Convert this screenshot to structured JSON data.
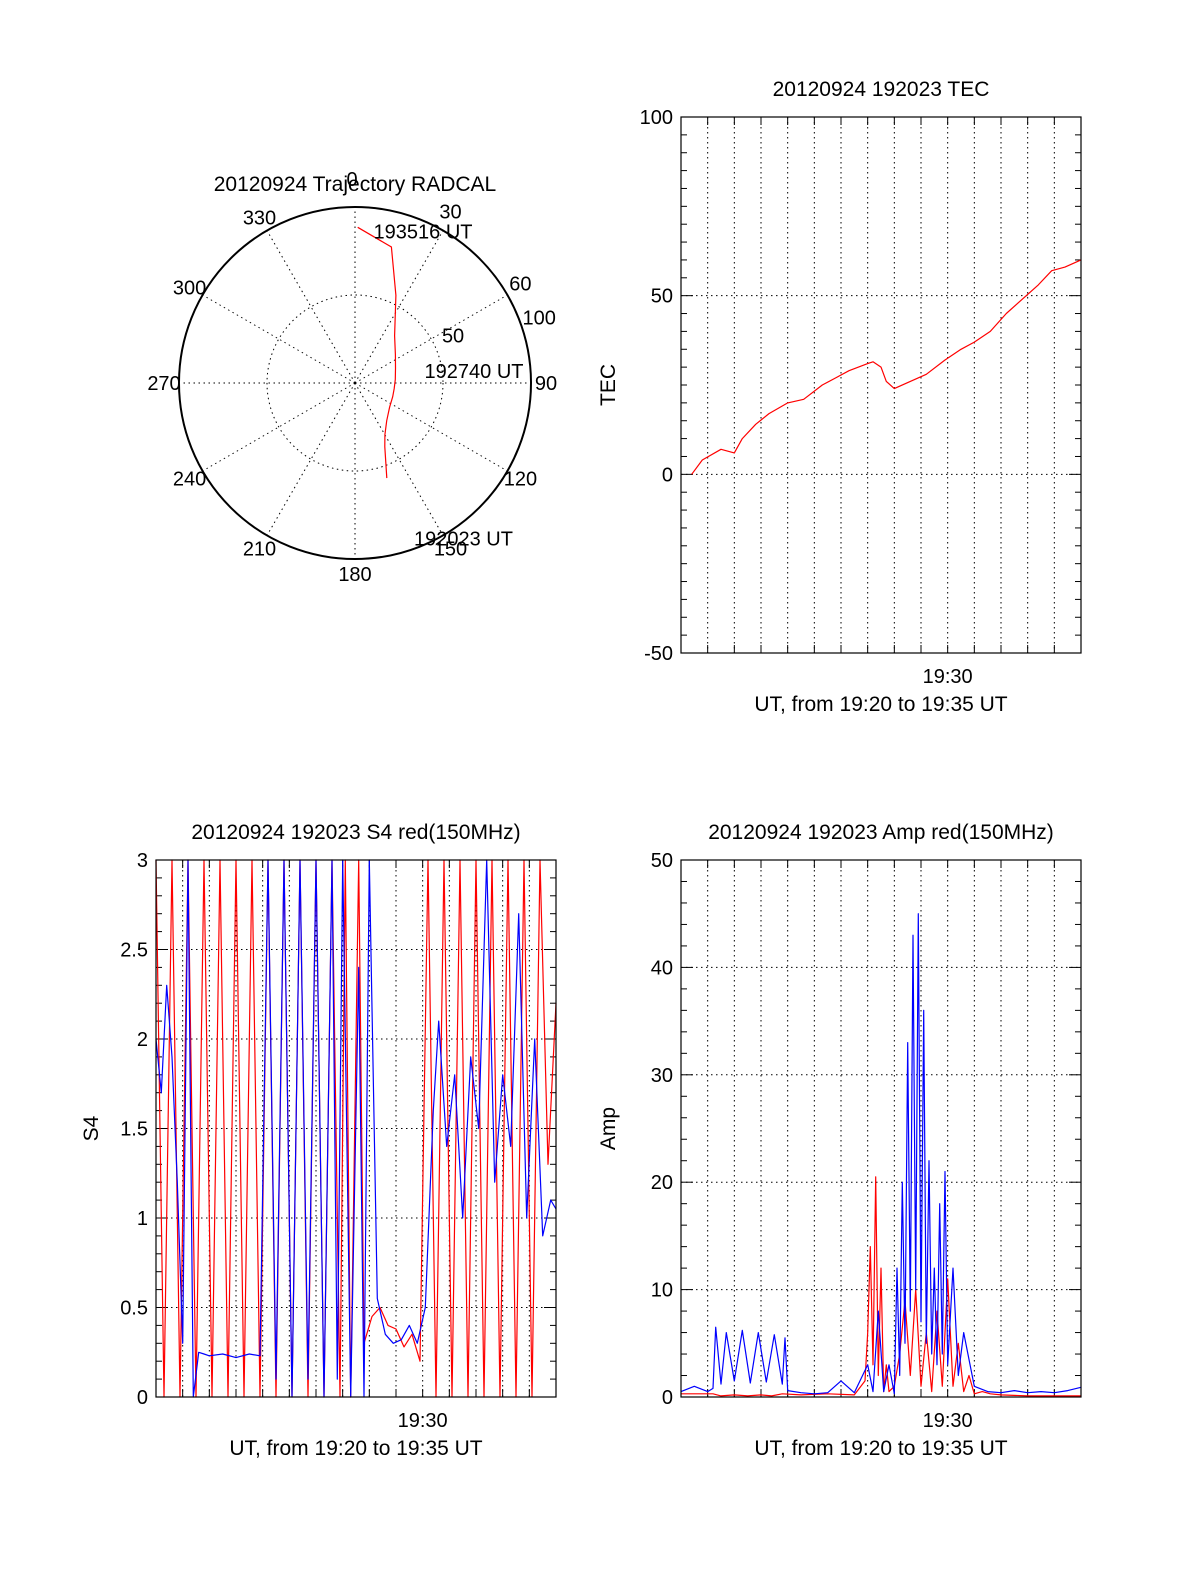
{
  "colors": {
    "red": "#ff0000",
    "blue": "#0000ff",
    "black": "#000000",
    "background": "#ffffff"
  },
  "chart_data": [
    {
      "id": "trajectory",
      "type": "polar",
      "title": "20120924 Trajectory RADCAL",
      "azimuth_labels": [
        "0",
        "30",
        "60",
        "90",
        "120",
        "150",
        "180",
        "210",
        "240",
        "270",
        "300",
        "330"
      ],
      "radial_labels": [
        "50",
        "100"
      ],
      "r_max": 100,
      "grid": true,
      "series": [
        {
          "color": "red",
          "points": [
            {
              "az": 161.5,
              "r": 57
            },
            {
              "az": 155.0,
              "r": 40
            },
            {
              "az": 150.0,
              "r": 34
            },
            {
              "az": 140.0,
              "r": 28
            },
            {
              "az": 125.0,
              "r": 24
            },
            {
              "az": 110.0,
              "r": 22.8
            },
            {
              "az": 98.0,
              "r": 22.5
            },
            {
              "az": 85.0,
              "r": 23.0
            },
            {
              "az": 70.0,
              "r": 24.5
            },
            {
              "az": 55.0,
              "r": 28
            },
            {
              "az": 40.0,
              "r": 35
            },
            {
              "az": 25.0,
              "r": 55
            },
            {
              "az": 15.0,
              "r": 80
            },
            {
              "az": 1.0,
              "r": 88.5
            }
          ]
        }
      ],
      "annotations": [
        {
          "text": "193516 UT",
          "az": 8,
          "r": 88
        },
        {
          "text": "192740 UT",
          "az": 79,
          "r": 42
        },
        {
          "text": "192023 UT",
          "az": 158,
          "r": 94
        }
      ]
    },
    {
      "id": "tec",
      "type": "line",
      "title": "20120924 192023 TEC",
      "xlabel": "UT, from 19:20 to 19:35 UT",
      "ylabel": "TEC",
      "ylim": [
        -50,
        100
      ],
      "xlim_minutes": [
        20.0,
        35.0
      ],
      "y_ticks": [
        "-50",
        "0",
        "50",
        "100"
      ],
      "x_tick_label": "19:30",
      "x_tick_minute": 30,
      "grid": true,
      "series": [
        {
          "color": "red",
          "x": [
            20.4,
            20.8,
            21.5,
            22.0,
            22.3,
            22.8,
            23.3,
            24.0,
            24.6,
            25.3,
            25.8,
            26.3,
            27.0,
            27.2,
            27.5,
            27.7,
            28.0,
            28.6,
            29.2,
            29.9,
            30.5,
            31.0,
            31.6,
            32.2,
            32.8,
            33.4,
            33.9,
            34.4,
            35.0
          ],
          "y": [
            0,
            4,
            7,
            6,
            10,
            14,
            17,
            20,
            21,
            25,
            27,
            29,
            31,
            31.5,
            30,
            26,
            24,
            26,
            28,
            32,
            35,
            37,
            40,
            45,
            49,
            53,
            57,
            58,
            60
          ]
        }
      ]
    },
    {
      "id": "s4",
      "type": "line",
      "title": "20120924 192023 S4 red(150MHz)",
      "xlabel": "UT, from 19:20 to 19:35 UT",
      "ylabel": "S4",
      "ylim": [
        0,
        3
      ],
      "xlim_minutes": [
        20.0,
        35.0
      ],
      "y_ticks": [
        "0",
        "0.5",
        "1",
        "1.5",
        "2",
        "2.5",
        "3"
      ],
      "x_tick_label": "19:30",
      "x_tick_minute": 30,
      "grid": true,
      "series": [
        {
          "color": "red",
          "x": [
            20.0,
            20.3,
            20.6,
            20.9,
            21.2,
            21.5,
            21.8,
            22.1,
            22.4,
            22.7,
            23.0,
            23.3,
            23.6,
            23.9,
            24.2,
            24.5,
            24.8,
            25.1,
            25.4,
            25.7,
            26.0,
            26.3,
            26.6,
            26.9,
            27.1,
            27.3,
            27.6,
            27.8,
            28.1,
            28.4,
            28.7,
            29.0,
            29.3,
            29.6,
            29.9,
            30.2,
            30.5,
            30.8,
            31.1,
            31.4,
            31.7,
            32.0,
            32.3,
            32.6,
            32.9,
            33.2,
            33.5,
            33.8,
            34.1,
            34.4,
            34.7,
            35.0
          ],
          "y": [
            3.0,
            0.0,
            3.0,
            0.0,
            3.0,
            0.0,
            3.0,
            0.0,
            3.0,
            0.0,
            3.0,
            0.0,
            3.0,
            0.0,
            3.0,
            0.0,
            3.0,
            0.0,
            3.0,
            0.0,
            3.0,
            0.0,
            3.0,
            0.0,
            3.0,
            0.0,
            3.0,
            0.3,
            0.45,
            0.5,
            0.4,
            0.38,
            0.28,
            0.35,
            0.2,
            3.0,
            0.0,
            3.0,
            0.0,
            3.0,
            0.0,
            3.0,
            0.0,
            3.0,
            0.0,
            3.0,
            0.0,
            3.0,
            0.0,
            3.0,
            1.3,
            2.2
          ]
        },
        {
          "color": "blue",
          "x": [
            20.0,
            20.2,
            20.4,
            20.6,
            20.8,
            21.0,
            21.2,
            21.4,
            21.6,
            21.8,
            22.0,
            22.5,
            23.0,
            23.5,
            23.9,
            24.2,
            24.5,
            24.8,
            25.1,
            25.4,
            25.7,
            26.0,
            26.3,
            26.6,
            26.8,
            27.0,
            27.3,
            27.6,
            27.8,
            28.0,
            28.3,
            28.6,
            28.9,
            29.2,
            29.5,
            29.8,
            30.1,
            30.4,
            30.6,
            30.9,
            31.2,
            31.5,
            31.8,
            32.1,
            32.4,
            32.7,
            33.0,
            33.3,
            33.6,
            33.9,
            34.2,
            34.5,
            34.8,
            35.0
          ],
          "y": [
            2.0,
            1.7,
            2.3,
            1.9,
            1.2,
            0.3,
            3.0,
            0.0,
            0.25,
            0.24,
            0.23,
            0.24,
            0.22,
            0.24,
            0.23,
            3.0,
            0.1,
            3.0,
            0.0,
            3.0,
            0.1,
            3.0,
            0.0,
            3.0,
            0.1,
            3.0,
            0.0,
            2.4,
            0.0,
            3.0,
            0.55,
            0.35,
            0.3,
            0.32,
            0.4,
            0.3,
            0.5,
            1.6,
            2.1,
            1.4,
            1.8,
            1.0,
            1.9,
            1.5,
            3.0,
            1.2,
            1.8,
            1.4,
            2.7,
            1.0,
            2.0,
            0.9,
            1.1,
            1.05
          ]
        }
      ]
    },
    {
      "id": "amp",
      "type": "line",
      "title": "20120924 192023 Amp red(150MHz)",
      "xlabel": "UT, from 19:20 to 19:35 UT",
      "ylabel": "Amp",
      "ylim": [
        0,
        50
      ],
      "xlim_minutes": [
        20.0,
        35.0
      ],
      "y_ticks": [
        "0",
        "10",
        "20",
        "30",
        "40",
        "50"
      ],
      "x_tick_label": "19:30",
      "x_tick_minute": 30,
      "grid": true,
      "series": [
        {
          "color": "red",
          "x": [
            20.0,
            21.2,
            21.5,
            22.0,
            22.5,
            23.0,
            23.4,
            23.8,
            24.5,
            25.5,
            26.5,
            26.9,
            27.0,
            27.1,
            27.2,
            27.3,
            27.4,
            27.5,
            27.6,
            27.7,
            27.8,
            28.0,
            28.2,
            28.4,
            28.6,
            28.8,
            29.0,
            29.2,
            29.4,
            29.6,
            29.8,
            30.0,
            30.2,
            30.4,
            30.6,
            30.8,
            31.0,
            31.3,
            31.6,
            32.0,
            33.0,
            34.0,
            35.0
          ],
          "y": [
            0.3,
            0.3,
            0.1,
            0.2,
            0.1,
            0.2,
            0.1,
            0.3,
            0.2,
            0.3,
            0.2,
            1.5,
            6,
            14,
            3,
            20.5,
            2,
            12,
            0.5,
            3,
            0.5,
            1,
            4,
            9,
            2,
            10,
            1,
            6,
            0.5,
            8,
            1,
            11,
            1,
            5,
            0.5,
            2,
            0.3,
            0.5,
            0.3,
            0.2,
            0.1,
            0.1,
            0.1
          ]
        },
        {
          "color": "blue",
          "x": [
            20.0,
            20.5,
            21.0,
            21.2,
            21.3,
            21.5,
            21.7,
            22.0,
            22.3,
            22.6,
            22.9,
            23.2,
            23.5,
            23.8,
            23.9,
            24.0,
            24.5,
            25.0,
            25.5,
            26.0,
            26.5,
            27.0,
            27.2,
            27.4,
            27.6,
            27.8,
            28.0,
            28.1,
            28.2,
            28.3,
            28.4,
            28.5,
            28.6,
            28.7,
            28.8,
            28.9,
            29.0,
            29.1,
            29.2,
            29.3,
            29.4,
            29.5,
            29.6,
            29.7,
            29.8,
            29.9,
            30.0,
            30.2,
            30.4,
            30.6,
            31.0,
            31.5,
            32.0,
            32.5,
            33.0,
            33.5,
            34.0,
            34.5,
            35.0
          ],
          "y": [
            0.5,
            1.0,
            0.5,
            0.8,
            6.5,
            1.2,
            6.0,
            1.5,
            6.2,
            1.3,
            6.0,
            1.4,
            5.8,
            1.2,
            5.5,
            0.6,
            0.4,
            0.3,
            0.4,
            1.5,
            0.4,
            3.0,
            0.5,
            8.0,
            0.5,
            3.0,
            0.3,
            12.0,
            2.0,
            20.0,
            5.0,
            33.0,
            8.0,
            43.0,
            10.0,
            45.0,
            7.0,
            36.0,
            5.0,
            22.0,
            4.0,
            12.0,
            3.0,
            18.0,
            4.0,
            21.0,
            3.0,
            12.0,
            2.0,
            6.0,
            1.0,
            0.5,
            0.4,
            0.6,
            0.4,
            0.5,
            0.4,
            0.6,
            0.9
          ]
        }
      ]
    }
  ]
}
